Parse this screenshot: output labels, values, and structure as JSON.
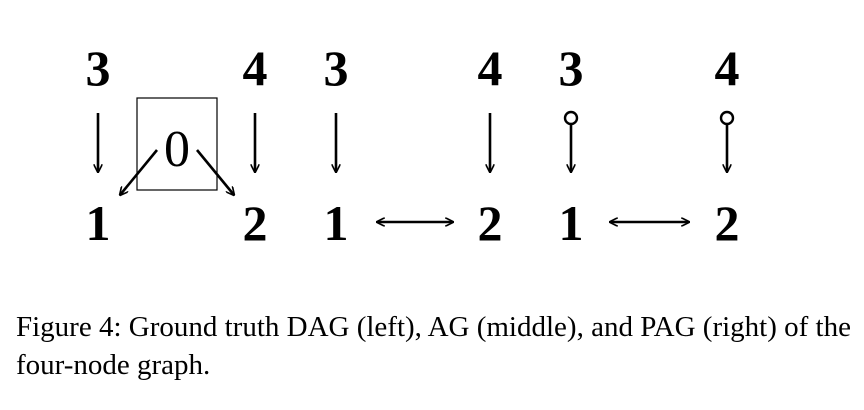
{
  "graphs": {
    "dag": {
      "node_3": "3",
      "node_4": "4",
      "node_1": "1",
      "node_2": "2",
      "latent_node": "0"
    },
    "ag": {
      "node_3": "3",
      "node_4": "4",
      "node_1": "1",
      "node_2": "2"
    },
    "pag": {
      "node_3": "3",
      "node_4": "4",
      "node_1": "1",
      "node_2": "2"
    }
  },
  "caption": {
    "text": "Figure 4: Ground truth DAG (left), AG (middle), and PAG (right) of the four-node graph."
  }
}
